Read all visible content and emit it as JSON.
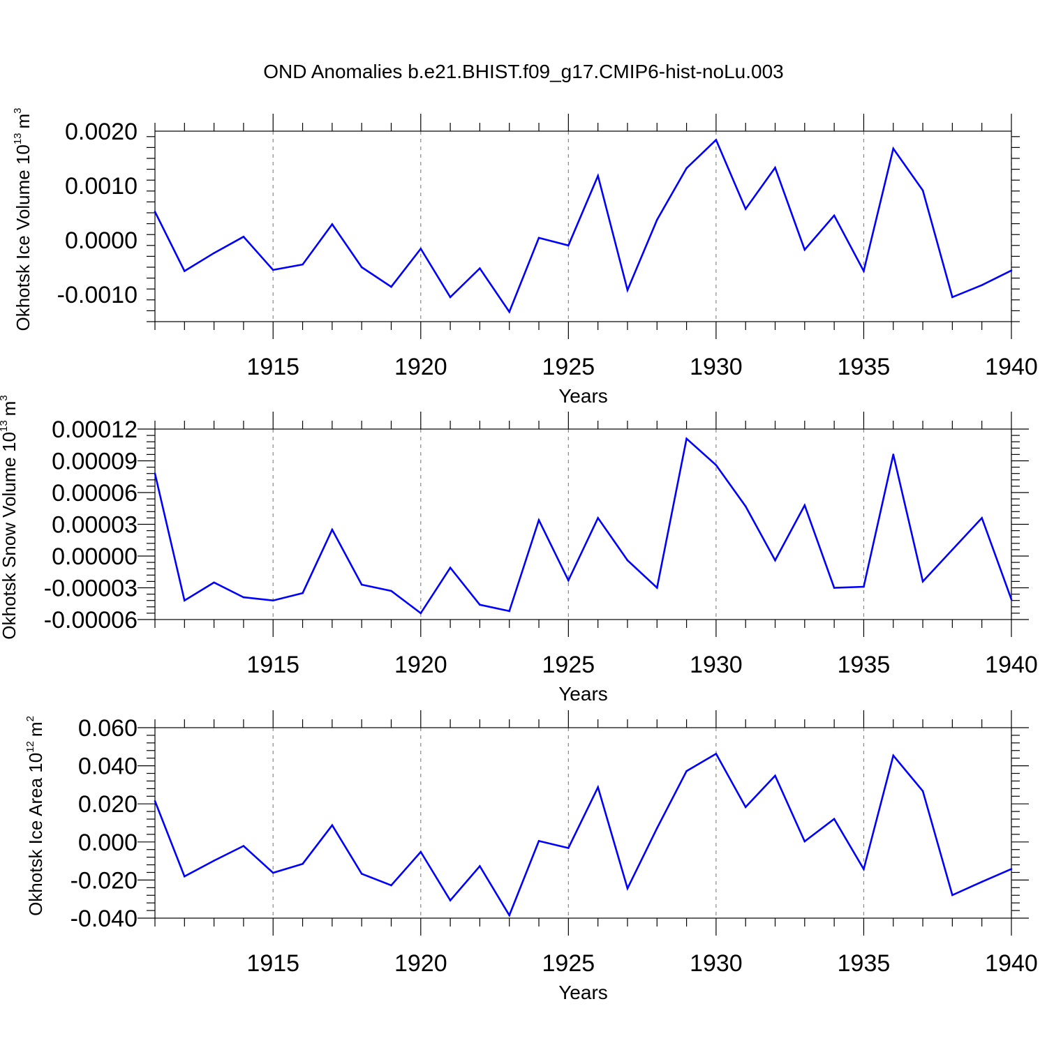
{
  "title": "OND Anomalies b.e21.BHIST.f09_g17.CMIP6-hist-noLu.003",
  "line_color": "#0000ff",
  "chart_data": [
    {
      "type": "line",
      "ylabel_main": "Okhotsk Ice Volume 10",
      "ylabel_exp": "13",
      "ylabel_unit": "m",
      "ylabel_unit_exp": "3",
      "xlabel": "Years",
      "xlim": [
        1911,
        1940
      ],
      "ylim": [
        -0.0015,
        0.002
      ],
      "yticks": [
        -0.001,
        0.0,
        0.001,
        0.002
      ],
      "ytick_labels": [
        "-0.0010",
        "0.0000",
        "0.0010",
        "0.0020"
      ],
      "xticks": [
        1915,
        1920,
        1925,
        1930,
        1935,
        1940
      ],
      "xtick_labels": [
        "1915",
        "1920",
        "1925",
        "1930",
        "1935",
        "1940"
      ],
      "x": [
        1911,
        1912,
        1913,
        1914,
        1915,
        1916,
        1917,
        1918,
        1919,
        1920,
        1921,
        1922,
        1923,
        1924,
        1925,
        1926,
        1927,
        1928,
        1929,
        1930,
        1931,
        1932,
        1933,
        1934,
        1935,
        1936,
        1937,
        1938,
        1939,
        1940
      ],
      "values": [
        0.00052,
        -0.00057,
        -0.00024,
        6e-05,
        -0.00055,
        -0.00045,
        0.00029,
        -0.0005,
        -0.00086,
        -0.00016,
        -0.00105,
        -0.00052,
        -0.00132,
        4e-05,
        -0.0001,
        0.00118,
        -0.00092,
        0.00037,
        0.00132,
        0.00184,
        0.00057,
        0.00133,
        -0.00018,
        0.00045,
        -0.00057,
        0.00168,
        0.00091,
        -0.00105,
        -0.00083,
        -0.00056
      ]
    },
    {
      "type": "line",
      "ylabel_main": "Okhotsk Snow Volume 10",
      "ylabel_exp": "13",
      "ylabel_unit": "m",
      "ylabel_unit_exp": "3",
      "xlabel": "Years",
      "xlim": [
        1911,
        1940
      ],
      "ylim": [
        -6e-05,
        0.00012
      ],
      "yticks": [
        -6e-05,
        -3e-05,
        0.0,
        3e-05,
        6e-05,
        9e-05,
        0.00012
      ],
      "ytick_labels": [
        "-0.00006",
        "-0.00003",
        "0.00000",
        "0.00003",
        "0.00006",
        "0.00009",
        "0.00012"
      ],
      "xticks": [
        1915,
        1920,
        1925,
        1930,
        1935,
        1940
      ],
      "xtick_labels": [
        "1915",
        "1920",
        "1925",
        "1930",
        "1935",
        "1940"
      ],
      "x": [
        1911,
        1912,
        1913,
        1914,
        1915,
        1916,
        1917,
        1918,
        1919,
        1920,
        1921,
        1922,
        1923,
        1924,
        1925,
        1926,
        1927,
        1928,
        1929,
        1930,
        1931,
        1932,
        1933,
        1934,
        1935,
        1936,
        1937,
        1938,
        1939,
        1940
      ],
      "values": [
        7.8e-05,
        -4.2e-05,
        -2.5e-05,
        -3.9e-05,
        -4.2e-05,
        -3.5e-05,
        2.5e-05,
        -2.7e-05,
        -3.3e-05,
        -5.4e-05,
        -1.1e-05,
        -4.6e-05,
        -5.2e-05,
        3.4e-05,
        -2.3e-05,
        3.6e-05,
        -4e-06,
        -3e-05,
        0.000111,
        8.6e-05,
        4.7e-05,
        -4e-06,
        4.8e-05,
        -3e-05,
        -2.9e-05,
        9.6e-05,
        -2.4e-05,
        6e-06,
        3.6e-05,
        -4.1e-05
      ]
    },
    {
      "type": "line",
      "ylabel_main": "Okhotsk Ice Area 10",
      "ylabel_exp": "12",
      "ylabel_unit": "m",
      "ylabel_unit_exp": "2",
      "xlabel": "Years",
      "xlim": [
        1911,
        1940
      ],
      "ylim": [
        -0.04,
        0.06
      ],
      "yticks": [
        -0.04,
        -0.02,
        0.0,
        0.02,
        0.04,
        0.06
      ],
      "ytick_labels": [
        "-0.040",
        "-0.020",
        "0.000",
        "0.020",
        "0.040",
        "0.060"
      ],
      "xticks": [
        1915,
        1920,
        1925,
        1930,
        1935,
        1940
      ],
      "xtick_labels": [
        "1915",
        "1920",
        "1925",
        "1930",
        "1935",
        "1940"
      ],
      "x": [
        1911,
        1912,
        1913,
        1914,
        1915,
        1916,
        1917,
        1918,
        1919,
        1920,
        1921,
        1922,
        1923,
        1924,
        1925,
        1926,
        1927,
        1928,
        1929,
        1930,
        1931,
        1932,
        1933,
        1934,
        1935,
        1936,
        1937,
        1938,
        1939,
        1940
      ],
      "values": [
        0.0215,
        -0.0181,
        -0.0098,
        -0.0021,
        -0.0162,
        -0.0115,
        0.0088,
        -0.0167,
        -0.0228,
        -0.0052,
        -0.0307,
        -0.0127,
        -0.0385,
        0.0005,
        -0.0032,
        0.0287,
        -0.0244,
        0.0072,
        0.0372,
        0.0463,
        0.0183,
        0.0348,
        0.0003,
        0.0121,
        -0.0143,
        0.0454,
        0.0267,
        -0.0279,
        -0.0209,
        -0.0142
      ]
    }
  ]
}
